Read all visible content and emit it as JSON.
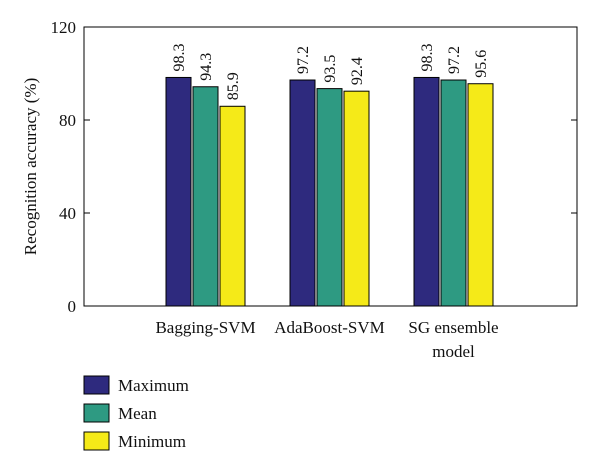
{
  "chart_data": {
    "type": "bar",
    "ylabel": "Recognition accuracy (%)",
    "ylim": [
      0,
      120
    ],
    "yticks": [
      "0",
      "40",
      "80",
      "120"
    ],
    "categories": [
      [
        "Bagging-SVM"
      ],
      [
        "AdaBoost-SVM"
      ],
      [
        "SG ensemble",
        "model"
      ]
    ],
    "series": [
      {
        "name": "Maximum",
        "color": "#2e2a7e",
        "values": [
          98.3,
          97.2,
          98.3
        ],
        "labels": [
          "98.3",
          "97.2",
          "98.3"
        ]
      },
      {
        "name": "Mean",
        "color": "#2e9a82",
        "values": [
          94.3,
          93.5,
          97.2
        ],
        "labels": [
          "94.3",
          "93.5",
          "97.2"
        ]
      },
      {
        "name": "Minimum",
        "color": "#f5ea18",
        "values": [
          85.9,
          92.4,
          95.6
        ],
        "labels": [
          "85.9",
          "92.4",
          "95.6"
        ]
      }
    ],
    "legend_position": "bottom-left",
    "grid": false
  }
}
